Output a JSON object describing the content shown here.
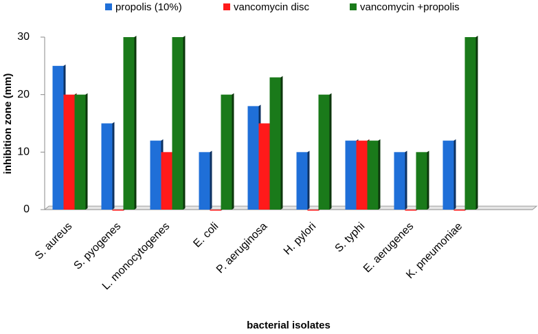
{
  "chart_data": {
    "type": "bar",
    "x_label": "bacterial isolates",
    "y_label": "inhibition zone  (mm)",
    "categories": [
      "S. aureus",
      "S. pyogenes",
      "L. monocytogenes",
      "E. coli",
      "P. aeruginosa",
      "H. pylori",
      "S. typhi",
      "E. aerugenes",
      "K. pneumoniae",
      null
    ],
    "series": [
      {
        "name": "propolis (10%)",
        "color": "#1f6fd8",
        "values": [
          25,
          15,
          12,
          10,
          18,
          10,
          12,
          10,
          12,
          null
        ]
      },
      {
        "name": "vancomycin disc",
        "color": "#ff1a1a",
        "values": [
          20,
          0,
          10,
          0,
          15,
          0,
          12,
          0,
          0,
          null
        ]
      },
      {
        "name": "vancomycin  +propolis",
        "color": "#1a7a1a",
        "values": [
          20,
          30,
          30,
          20,
          23,
          20,
          12,
          10,
          30,
          null
        ]
      }
    ],
    "ylim": [
      0,
      30
    ],
    "yticks": [
      0,
      10,
      20,
      30
    ],
    "grid": false,
    "legend": "top"
  }
}
